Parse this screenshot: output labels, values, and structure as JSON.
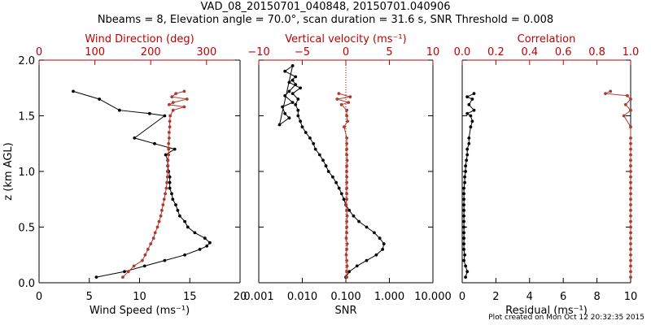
{
  "title_line1": "VAD_08_20150701_040848, 20150701.040906",
  "title_line2": "Nbeams = 8, Elevation angle = 70.0°, scan duration = 31.6 s, SNR Threshold = 0.008",
  "footer": "Plot created on Mon Oct 12 20:32:35 2015",
  "colors": {
    "black_series": "#000000",
    "red_series": "#b03a2e",
    "red_axis": "#c00000"
  },
  "chart_data": [
    {
      "type": "line",
      "ylabel": "z (km AGL)",
      "ylim": [
        0,
        2.0
      ],
      "yticks": [
        0.0,
        0.5,
        1.0,
        1.5,
        2.0
      ],
      "ytick_labels": [
        "0.0",
        "0.5",
        "1.0",
        "1.5",
        "2.0"
      ],
      "bottom_axis": {
        "label": "Wind Speed (ms⁻¹)",
        "lim": [
          0,
          20
        ],
        "ticks": [
          0,
          5,
          10,
          15,
          20
        ],
        "tick_labels": [
          "0",
          "5",
          "10",
          "15",
          "20"
        ]
      },
      "top_axis": {
        "label": "Wind Direction (deg)",
        "lim": [
          0,
          360
        ],
        "ticks": [
          0,
          100,
          200,
          300
        ],
        "tick_labels": [
          "0",
          "100",
          "200",
          "300"
        ]
      },
      "series": [
        {
          "axis": "bottom",
          "color": "black",
          "x": [
            5.7,
            8.5,
            10.5,
            12.5,
            14.5,
            16.0,
            16.7,
            17.0,
            16.5,
            15.5,
            14.8,
            14.5,
            14.0,
            13.8,
            13.6,
            13.3,
            13.2,
            13.0,
            13.0,
            13.0,
            12.9,
            12.8,
            12.8,
            12.6,
            13.5,
            11.5,
            9.5,
            12.5,
            11.0,
            8.0,
            6.0,
            3.4
          ],
          "y": [
            0.05,
            0.1,
            0.15,
            0.2,
            0.25,
            0.3,
            0.33,
            0.36,
            0.4,
            0.45,
            0.5,
            0.55,
            0.6,
            0.65,
            0.7,
            0.75,
            0.8,
            0.85,
            0.9,
            0.95,
            1.0,
            1.05,
            1.1,
            1.15,
            1.2,
            1.25,
            1.3,
            1.5,
            1.52,
            1.55,
            1.65,
            1.72
          ]
        },
        {
          "axis": "top",
          "color": "red",
          "x": [
            150,
            160,
            170,
            185,
            190,
            195,
            200,
            205,
            208,
            212,
            215,
            218,
            220,
            222,
            224,
            226,
            228,
            229,
            230,
            230,
            231,
            231,
            232,
            232,
            232,
            233,
            233,
            234,
            234,
            235,
            240,
            260,
            233,
            240,
            265,
            238,
            245,
            260
          ],
          "y": [
            0.05,
            0.1,
            0.15,
            0.2,
            0.25,
            0.3,
            0.35,
            0.4,
            0.45,
            0.5,
            0.55,
            0.6,
            0.65,
            0.7,
            0.75,
            0.8,
            0.85,
            0.9,
            0.95,
            1.0,
            1.05,
            1.1,
            1.15,
            1.2,
            1.25,
            1.3,
            1.35,
            1.4,
            1.45,
            1.5,
            1.55,
            1.58,
            1.6,
            1.62,
            1.65,
            1.67,
            1.7,
            1.72
          ]
        }
      ]
    },
    {
      "type": "line",
      "ylim": [
        0,
        2.0
      ],
      "bottom_axis": {
        "label": "SNR",
        "scale": "log",
        "lim": [
          0.001,
          10
        ],
        "ticks": [
          0.001,
          0.01,
          0.1,
          1,
          10
        ],
        "tick_labels": [
          "0.001",
          "0.010",
          "0.100",
          "1.000",
          "10.000"
        ]
      },
      "top_axis": {
        "label": "Vertical velocity (ms⁻¹)",
        "lim": [
          -10,
          10
        ],
        "ticks": [
          -10,
          -5,
          0,
          5,
          10
        ],
        "tick_labels": [
          "−10",
          "−5",
          "0",
          "5",
          "10"
        ]
      },
      "series": [
        {
          "axis": "bottom",
          "color": "black",
          "x": [
            0.1,
            0.12,
            0.18,
            0.3,
            0.5,
            0.7,
            0.75,
            0.6,
            0.45,
            0.3,
            0.2,
            0.15,
            0.12,
            0.1,
            0.09,
            0.08,
            0.07,
            0.06,
            0.05,
            0.04,
            0.035,
            0.03,
            0.025,
            0.02,
            0.018,
            0.015,
            0.012,
            0.01,
            0.009,
            0.008,
            0.008,
            0.007,
            0.008,
            0.006,
            0.009,
            0.005,
            0.007,
            0.004,
            0.006,
            0.003,
            0.005,
            0.004,
            0.0035,
            0.006,
            0.004,
            0.005,
            0.007,
            0.006
          ],
          "y": [
            0.05,
            0.1,
            0.15,
            0.2,
            0.25,
            0.3,
            0.35,
            0.4,
            0.45,
            0.5,
            0.55,
            0.6,
            0.65,
            0.7,
            0.75,
            0.8,
            0.85,
            0.9,
            0.95,
            1.0,
            1.05,
            1.1,
            1.15,
            1.2,
            1.25,
            1.3,
            1.35,
            1.4,
            1.45,
            1.5,
            1.55,
            1.6,
            1.65,
            1.7,
            1.75,
            1.8,
            1.85,
            1.9,
            1.95,
            1.42,
            1.48,
            1.52,
            1.58,
            1.62,
            1.68,
            1.72,
            1.78,
            1.82
          ]
        },
        {
          "axis": "top",
          "color": "red",
          "x": [
            0.1,
            0.1,
            0.15,
            0.1,
            0.05,
            0.1,
            0.15,
            0.05,
            0.1,
            0.1,
            0.1,
            0.15,
            0.1,
            0.05,
            0.1,
            0.1,
            0.1,
            0.1,
            0.1,
            0.1,
            0.1,
            0.15,
            0.1,
            0.1,
            0.1,
            0.1,
            -0.2,
            0.2,
            0.1,
            0.1,
            -0.5,
            0.3,
            -1.0,
            0.5,
            -0.8
          ],
          "y": [
            0.05,
            0.1,
            0.15,
            0.2,
            0.25,
            0.3,
            0.35,
            0.4,
            0.45,
            0.5,
            0.55,
            0.6,
            0.65,
            0.7,
            0.75,
            0.8,
            0.85,
            0.9,
            0.95,
            1.0,
            1.05,
            1.1,
            1.15,
            1.2,
            1.25,
            1.3,
            1.4,
            1.45,
            1.5,
            1.55,
            1.6,
            1.62,
            1.65,
            1.67,
            1.7
          ]
        }
      ]
    },
    {
      "type": "line",
      "ylim": [
        0,
        2.0
      ],
      "bottom_axis": {
        "label": "Residual (ms⁻¹)",
        "lim": [
          0,
          10
        ],
        "ticks": [
          0,
          2,
          4,
          6,
          8,
          10
        ],
        "tick_labels": [
          "0",
          "2",
          "4",
          "6",
          "8",
          "10"
        ]
      },
      "top_axis": {
        "label": "Correlation",
        "lim": [
          0,
          1.0
        ],
        "ticks": [
          0.0,
          0.2,
          0.4,
          0.6,
          0.8,
          1.0
        ],
        "tick_labels": [
          "0.0",
          "0.2",
          "0.4",
          "0.6",
          "0.8",
          "1.0"
        ]
      },
      "series": [
        {
          "axis": "bottom",
          "color": "black",
          "x": [
            0.2,
            0.3,
            0.2,
            0.1,
            0.15,
            0.1,
            0.1,
            0.1,
            0.1,
            0.1,
            0.1,
            0.1,
            0.1,
            0.1,
            0.1,
            0.1,
            0.1,
            0.15,
            0.15,
            0.2,
            0.2,
            0.25,
            0.3,
            0.3,
            0.4,
            0.4,
            0.5,
            0.6,
            0.5,
            0.3,
            0.7,
            0.4,
            0.6,
            0.3,
            0.7
          ],
          "y": [
            0.05,
            0.1,
            0.15,
            0.2,
            0.25,
            0.3,
            0.35,
            0.4,
            0.45,
            0.5,
            0.55,
            0.6,
            0.65,
            0.7,
            0.75,
            0.8,
            0.85,
            0.9,
            0.95,
            1.0,
            1.05,
            1.1,
            1.15,
            1.2,
            1.25,
            1.3,
            1.4,
            1.45,
            1.5,
            1.52,
            1.55,
            1.6,
            1.65,
            1.67,
            1.7
          ]
        },
        {
          "axis": "top",
          "color": "red",
          "x": [
            1.0,
            1.0,
            1.0,
            1.0,
            1.0,
            1.0,
            1.0,
            1.0,
            1.0,
            1.0,
            1.0,
            1.0,
            1.0,
            1.0,
            1.0,
            1.0,
            1.0,
            1.0,
            1.0,
            1.0,
            1.0,
            1.0,
            1.0,
            1.0,
            1.0,
            1.0,
            1.0,
            0.96,
            1.0,
            0.97,
            1.0,
            0.98,
            0.85,
            0.88
          ],
          "y": [
            0.05,
            0.1,
            0.15,
            0.2,
            0.25,
            0.3,
            0.35,
            0.4,
            0.45,
            0.5,
            0.55,
            0.6,
            0.65,
            0.7,
            0.75,
            0.8,
            0.85,
            0.9,
            0.95,
            1.0,
            1.05,
            1.1,
            1.15,
            1.2,
            1.25,
            1.3,
            1.4,
            1.5,
            1.55,
            1.6,
            1.65,
            1.68,
            1.7,
            1.72
          ]
        }
      ]
    }
  ]
}
